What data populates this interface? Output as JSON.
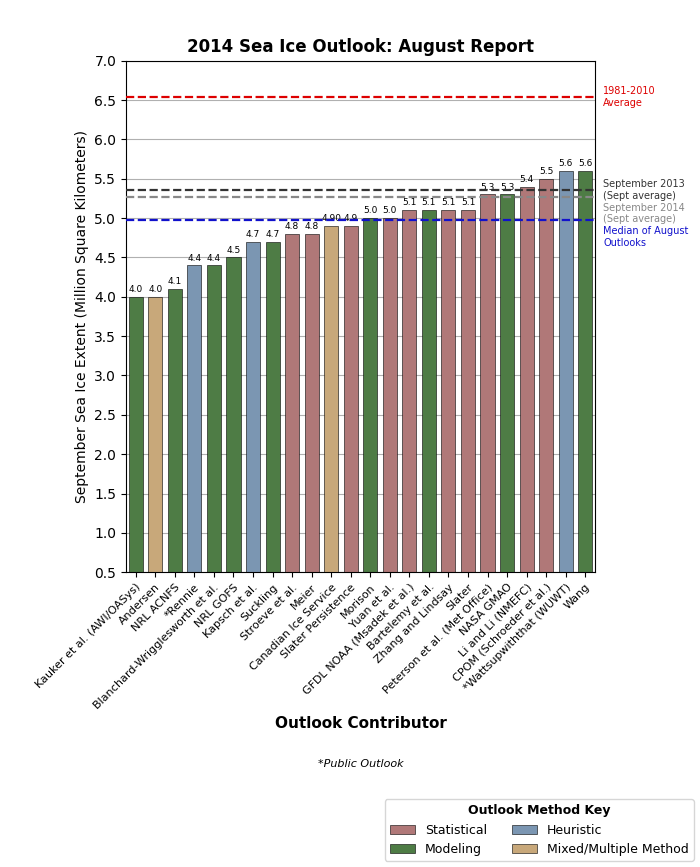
{
  "chart_data": {
    "type": "bar",
    "title": "2014 Sea Ice Outlook: August Report",
    "xlabel": "Outlook Contributor",
    "ylabel": "September Sea Ice Extent (Million Square Kilometers)",
    "categories": [
      "Kauker et al. (AWI/OASys)",
      "Andersen",
      "NRL ACNFS",
      "*Rennie",
      "Blanchard-Wrigglesworth et al.",
      "NRL GOFS",
      "Kapsch et al.",
      "Suckling",
      "Stroeve et al.",
      "Meier",
      "Canadian Ice Service",
      "Slater Persistence",
      "Morison",
      "Yuan et al.",
      "GFDL NOAA (Msadek et al.)",
      "Bartelemy et al.",
      "Zhang and Lindsay",
      "Slater",
      "Peterson et al. (Met Office)",
      "NASA GMAO",
      "Li and Li (NMEFC)",
      "CPOM (Schroeder et al.)",
      "*Wattsupwiththat (WUWT)",
      "Wang"
    ],
    "values": [
      4.0,
      4.0,
      4.1,
      4.4,
      4.4,
      4.5,
      4.7,
      4.7,
      4.8,
      4.8,
      4.9,
      4.9,
      5.0,
      5.0,
      5.1,
      5.1,
      5.1,
      5.1,
      5.3,
      5.3,
      5.4,
      5.5,
      5.6,
      5.6
    ],
    "value_labels": [
      "4.0",
      "4.0",
      "4.1",
      "4.4",
      "4.4",
      "4.5",
      "4.7",
      "4.7",
      "4.8",
      "4.8",
      "4.90",
      "4.9",
      "5.0",
      "5.0",
      "5.1",
      "5.1",
      "5.1",
      "5.1",
      "5.3",
      "5.3",
      "5.4",
      "5.5",
      "5.6",
      "5.6"
    ],
    "data_labels": true,
    "colors": [
      "#4e7c45",
      "#c8a87a",
      "#4e7c45",
      "#7b96b2",
      "#4e7c45",
      "#4e7c45",
      "#7b96b2",
      "#4e7c45",
      "#b07878",
      "#b07878",
      "#c8a87a",
      "#b07878",
      "#4e7c45",
      "#b07878",
      "#b07878",
      "#4e7c45",
      "#b07878",
      "#b07878",
      "#b07878",
      "#4e7c45",
      "#b07878",
      "#b07878",
      "#7b96b2",
      "#4e7c45"
    ],
    "ylim": [
      0.5,
      7.0
    ],
    "yticks": [
      0.5,
      {
        "value": 1,
        "label": "1.0"
      },
      1.5,
      {
        "value": 2,
        "label": "2.0"
      },
      2.5,
      {
        "value": 3,
        "label": "3.0"
      },
      3.5,
      {
        "value": 4,
        "label": "4.0"
      },
      4.5,
      {
        "value": 5,
        "label": "5.0"
      },
      5.5,
      {
        "value": 6,
        "label": "6.0"
      },
      6.5,
      {
        "value": 7,
        "label": "7.0"
      }
    ],
    "grid": "y",
    "reference_lines": [
      {
        "label": "1981-2010\nAverage",
        "value": 6.54,
        "color": "#dd0000"
      },
      {
        "label": "September 2013\n(Sept average)",
        "value": 5.36,
        "color": "#333333"
      },
      {
        "label": "September 2014\n(Sept average)",
        "value": 5.27,
        "color": "#888888"
      },
      {
        "label": "Median of August\nOutlooks",
        "value": 4.97,
        "color": "#1111cc"
      }
    ],
    "annotations": [
      "*Public Outlook"
    ],
    "legend": "lower right",
    "legend_title": "Outlook Method Key",
    "legend_entries": [
      {
        "name": "Statistical",
        "color": "#b07878"
      },
      {
        "name": "Modeling",
        "color": "#4e7c45"
      },
      {
        "name": "Heuristic",
        "color": "#7b96b2"
      },
      {
        "name": "Mixed/Multiple Method",
        "color": "#c8a87a"
      }
    ]
  }
}
